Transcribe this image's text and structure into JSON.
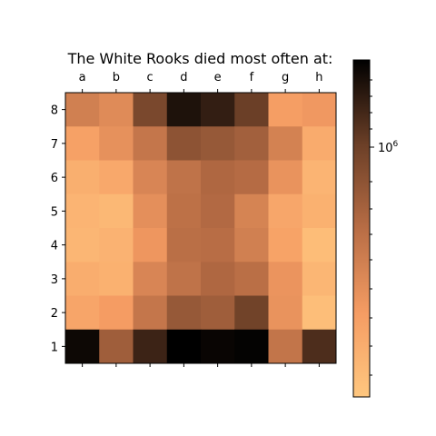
{
  "chart_data": {
    "type": "heatmap",
    "title": "The White Rooks died most often at:",
    "files": [
      "a",
      "b",
      "c",
      "d",
      "e",
      "f",
      "g",
      "h"
    ],
    "ranks": [
      "8",
      "7",
      "6",
      "5",
      "4",
      "3",
      "2",
      "1"
    ],
    "values": [
      [
        0.4,
        0.34,
        0.7,
        0.93,
        0.88,
        0.75,
        0.24,
        0.27
      ],
      [
        0.22,
        0.31,
        0.45,
        0.64,
        0.61,
        0.57,
        0.39,
        0.16
      ],
      [
        0.14,
        0.18,
        0.37,
        0.47,
        0.53,
        0.51,
        0.3,
        0.11
      ],
      [
        0.11,
        0.09,
        0.32,
        0.48,
        0.52,
        0.38,
        0.19,
        0.13
      ],
      [
        0.1,
        0.12,
        0.28,
        0.49,
        0.5,
        0.4,
        0.21,
        0.06
      ],
      [
        0.15,
        0.13,
        0.37,
        0.47,
        0.53,
        0.49,
        0.29,
        0.1
      ],
      [
        0.2,
        0.25,
        0.45,
        0.61,
        0.58,
        0.73,
        0.3,
        0.05
      ],
      [
        0.97,
        0.58,
        0.86,
        1.0,
        0.98,
        0.99,
        0.46,
        0.82
      ]
    ],
    "colormap": "copper_r",
    "colorbar": {
      "major_tick_label": "10^6",
      "major_tick_value": 1000000,
      "scale": "log"
    },
    "xticks_position": "top"
  }
}
